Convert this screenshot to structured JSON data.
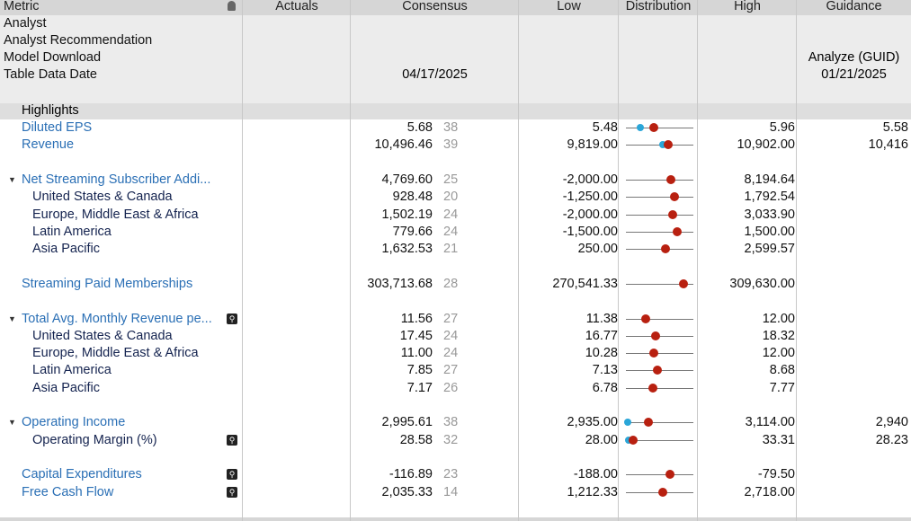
{
  "header": {
    "metric": "Metric",
    "actuals": "Actuals",
    "consensus": "Consensus",
    "low": "Low",
    "distribution": "Distribution",
    "high": "High",
    "guidance": "Guidance"
  },
  "meta": {
    "analyst": "Analyst",
    "analyst_recommendation": "Analyst Recommendation",
    "model_download": "Model Download",
    "table_data_date": "Table Data Date",
    "consensus_date": "04/17/2025",
    "guidance_source": "Analyze (GUID)",
    "guidance_date": "01/21/2025"
  },
  "section": "Highlights",
  "colors": {
    "consensus_dot": "#b82010",
    "guidance_dot": "#2aa6d8",
    "top_text": "#2a6fb5",
    "child_text": "#14234f"
  },
  "rows": [
    {
      "slot": 0,
      "name": "Diluted EPS",
      "level": "top",
      "consensus": "5.68",
      "count": "38",
      "low": "5.48",
      "high": "5.96",
      "guidance": "5.58",
      "c": 5.68,
      "l": 5.48,
      "h": 5.96,
      "g": 5.58
    },
    {
      "slot": 1,
      "name": "Revenue",
      "level": "top",
      "consensus": "10,496.46",
      "count": "39",
      "low": "9,819.00",
      "high": "10,902.00",
      "guidance": "10,416",
      "c": 10496.46,
      "l": 9819,
      "h": 10902,
      "g": 10416
    },
    {
      "slot": 3,
      "name": "Net Streaming Subscriber Addi...",
      "level": "top",
      "tri": true,
      "consensus": "4,769.60",
      "count": "25",
      "low": "-2,000.00",
      "high": "8,194.64",
      "c": 4769.6,
      "l": -2000,
      "h": 8194.64
    },
    {
      "slot": 4,
      "name": "United States & Canada",
      "level": "child",
      "consensus": "928.48",
      "count": "20",
      "low": "-1,250.00",
      "high": "1,792.54",
      "c": 928.48,
      "l": -1250,
      "h": 1792.54
    },
    {
      "slot": 5,
      "name": "Europe, Middle East & Africa",
      "level": "child",
      "consensus": "1,502.19",
      "count": "24",
      "low": "-2,000.00",
      "high": "3,033.90",
      "c": 1502.19,
      "l": -2000,
      "h": 3033.9
    },
    {
      "slot": 6,
      "name": "Latin America",
      "level": "child",
      "consensus": "779.66",
      "count": "24",
      "low": "-1,500.00",
      "high": "1,500.00",
      "c": 779.66,
      "l": -1500,
      "h": 1500
    },
    {
      "slot": 7,
      "name": "Asia Pacific",
      "level": "child",
      "consensus": "1,632.53",
      "count": "21",
      "low": "250.00",
      "high": "2,599.57",
      "c": 1632.53,
      "l": 250,
      "h": 2599.57
    },
    {
      "slot": 9,
      "name": "Streaming Paid Memberships",
      "level": "top",
      "consensus": "303,713.68",
      "count": "28",
      "low": "270,541.33",
      "high": "309,630.00",
      "c": 303713.68,
      "l": 270541.33,
      "h": 309630
    },
    {
      "slot": 11,
      "name": "Total Avg. Monthly Revenue pe...",
      "level": "top",
      "tri": true,
      "zoom": true,
      "consensus": "11.56",
      "count": "27",
      "low": "11.38",
      "high": "12.00",
      "c": 11.56,
      "l": 11.38,
      "h": 12
    },
    {
      "slot": 12,
      "name": "United States & Canada",
      "level": "child",
      "consensus": "17.45",
      "count": "24",
      "low": "16.77",
      "high": "18.32",
      "c": 17.45,
      "l": 16.77,
      "h": 18.32
    },
    {
      "slot": 13,
      "name": "Europe, Middle East & Africa",
      "level": "child",
      "consensus": "11.00",
      "count": "24",
      "low": "10.28",
      "high": "12.00",
      "c": 11,
      "l": 10.28,
      "h": 12
    },
    {
      "slot": 14,
      "name": "Latin America",
      "level": "child",
      "consensus": "7.85",
      "count": "27",
      "low": "7.13",
      "high": "8.68",
      "c": 7.85,
      "l": 7.13,
      "h": 8.68
    },
    {
      "slot": 15,
      "name": "Asia Pacific",
      "level": "child",
      "consensus": "7.17",
      "count": "26",
      "low": "6.78",
      "high": "7.77",
      "c": 7.17,
      "l": 6.78,
      "h": 7.77
    },
    {
      "slot": 17,
      "name": "Operating Income",
      "level": "top",
      "tri": true,
      "consensus": "2,995.61",
      "count": "38",
      "low": "2,935.00",
      "high": "3,114.00",
      "guidance": "2,940",
      "c": 2995.61,
      "l": 2935,
      "h": 3114,
      "g": 2940
    },
    {
      "slot": 18,
      "name": "Operating Margin (%)",
      "level": "child",
      "zoom": true,
      "consensus": "28.58",
      "count": "32",
      "low": "28.00",
      "high": "33.31",
      "guidance": "28.23",
      "c": 28.58,
      "l": 28,
      "h": 33.31,
      "g": 28.23
    },
    {
      "slot": 20,
      "name": "Capital Expenditures",
      "level": "top",
      "zoom": true,
      "consensus": "-116.89",
      "count": "23",
      "low": "-188.00",
      "high": "-79.50",
      "c": -116.89,
      "l": -188,
      "h": -79.5
    },
    {
      "slot": 21,
      "name": "Free Cash Flow",
      "level": "top",
      "zoom": true,
      "consensus": "2,035.33",
      "count": "14",
      "low": "1,212.33",
      "high": "2,718.00",
      "c": 2035.33,
      "l": 1212.33,
      "h": 2718
    }
  ]
}
